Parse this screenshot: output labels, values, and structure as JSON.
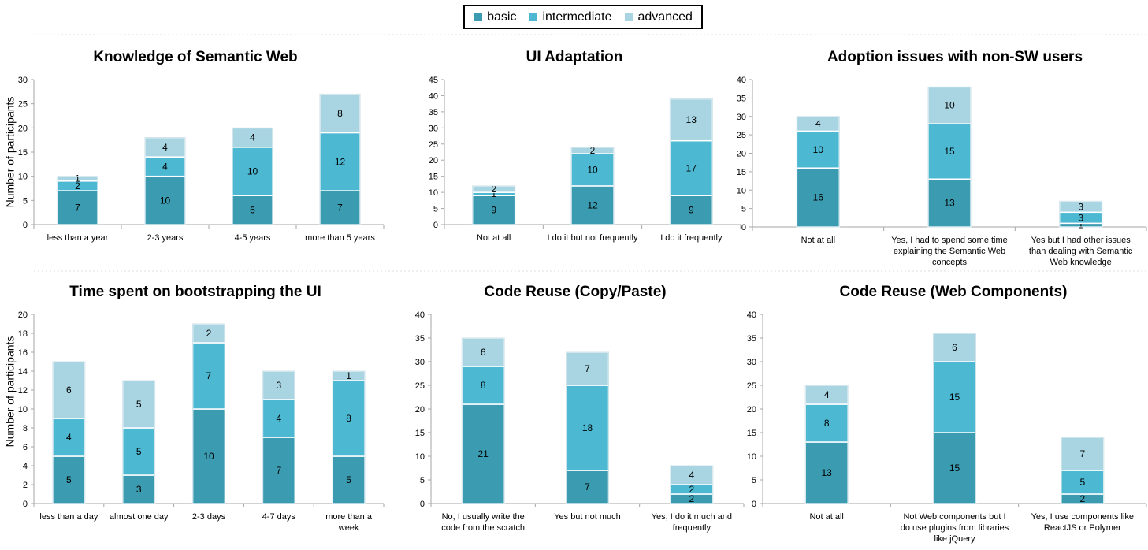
{
  "legend": [
    {
      "label": "basic",
      "color": "#3b9bb0"
    },
    {
      "label": "intermediate",
      "color": "#4cb8d2"
    },
    {
      "label": "advanced",
      "color": "#a9d5e3"
    }
  ],
  "ylabel": "Number of participants",
  "chart_data": [
    {
      "type": "bar",
      "stacked": true,
      "title": "Knowledge of Semantic Web",
      "ylabel": "Number of participants",
      "ylim": [
        0,
        30
      ],
      "yticks": [
        0,
        5,
        10,
        15,
        20,
        25,
        30
      ],
      "categories": [
        [
          "less than a year"
        ],
        [
          "2-3 years"
        ],
        [
          "4-5 years"
        ],
        [
          "more than 5 years"
        ]
      ],
      "series": [
        {
          "name": "basic",
          "values": [
            7,
            10,
            6,
            7
          ]
        },
        {
          "name": "intermediate",
          "values": [
            2,
            4,
            10,
            12
          ]
        },
        {
          "name": "advanced",
          "values": [
            1,
            4,
            4,
            8
          ]
        }
      ]
    },
    {
      "type": "bar",
      "stacked": true,
      "title": "UI Adaptation",
      "ylabel": "",
      "ylim": [
        0,
        45
      ],
      "yticks": [
        0,
        5,
        10,
        15,
        20,
        25,
        30,
        35,
        40,
        45
      ],
      "categories": [
        [
          "Not at all"
        ],
        [
          "I do it but not frequently"
        ],
        [
          "I do it frequently"
        ]
      ],
      "series": [
        {
          "name": "basic",
          "values": [
            9,
            12,
            9
          ]
        },
        {
          "name": "intermediate",
          "values": [
            1,
            10,
            17
          ]
        },
        {
          "name": "advanced",
          "values": [
            2,
            2,
            13
          ]
        }
      ]
    },
    {
      "type": "bar",
      "stacked": true,
      "title": "Adoption issues with non-SW users",
      "ylabel": "",
      "ylim": [
        0,
        40
      ],
      "yticks": [
        0,
        5,
        10,
        15,
        20,
        25,
        30,
        35,
        40
      ],
      "categories": [
        [
          "Not at all"
        ],
        [
          "Yes, I had to spend some time",
          "explaining the Semantic Web",
          "concepts"
        ],
        [
          "Yes but I had other issues",
          "than dealing with Semantic",
          "Web knowledge"
        ]
      ],
      "series": [
        {
          "name": "basic",
          "values": [
            16,
            13,
            1
          ]
        },
        {
          "name": "intermediate",
          "values": [
            10,
            15,
            3
          ]
        },
        {
          "name": "advanced",
          "values": [
            4,
            10,
            3
          ]
        }
      ]
    },
    {
      "type": "bar",
      "stacked": true,
      "title": "Time spent on bootstrapping the UI",
      "ylabel": "Number of participants",
      "ylim": [
        0,
        20
      ],
      "yticks": [
        0,
        2,
        4,
        6,
        8,
        10,
        12,
        14,
        16,
        18,
        20
      ],
      "categories": [
        [
          "less than a day"
        ],
        [
          "almost one day"
        ],
        [
          "2-3 days"
        ],
        [
          "4-7 days"
        ],
        [
          "more than a",
          "week"
        ]
      ],
      "series": [
        {
          "name": "basic",
          "values": [
            5,
            3,
            10,
            7,
            5
          ]
        },
        {
          "name": "intermediate",
          "values": [
            4,
            5,
            7,
            4,
            8
          ]
        },
        {
          "name": "advanced",
          "values": [
            6,
            5,
            2,
            3,
            1
          ]
        }
      ]
    },
    {
      "type": "bar",
      "stacked": true,
      "title": "Code Reuse (Copy/Paste)",
      "ylabel": "",
      "ylim": [
        0,
        40
      ],
      "yticks": [
        0,
        5,
        10,
        15,
        20,
        25,
        30,
        35,
        40
      ],
      "categories": [
        [
          "No, I usually write the",
          "code from the scratch"
        ],
        [
          "Yes but not much"
        ],
        [
          "Yes, I do it much and",
          "frequently"
        ]
      ],
      "series": [
        {
          "name": "basic",
          "values": [
            21,
            7,
            2
          ]
        },
        {
          "name": "intermediate",
          "values": [
            8,
            18,
            2
          ]
        },
        {
          "name": "advanced",
          "values": [
            6,
            7,
            4
          ]
        }
      ]
    },
    {
      "type": "bar",
      "stacked": true,
      "title": "Code Reuse (Web Components)",
      "ylabel": "",
      "ylim": [
        0,
        40
      ],
      "yticks": [
        0,
        5,
        10,
        15,
        20,
        25,
        30,
        35,
        40
      ],
      "categories": [
        [
          "Not at all"
        ],
        [
          "Not Web components but I",
          "do use plugins from libraries",
          "like jQuery"
        ],
        [
          "Yes, I use components like",
          "ReactJS or Polymer"
        ]
      ],
      "series": [
        {
          "name": "basic",
          "values": [
            13,
            15,
            2
          ]
        },
        {
          "name": "intermediate",
          "values": [
            8,
            15,
            5
          ]
        },
        {
          "name": "advanced",
          "values": [
            4,
            6,
            7
          ]
        }
      ]
    }
  ]
}
